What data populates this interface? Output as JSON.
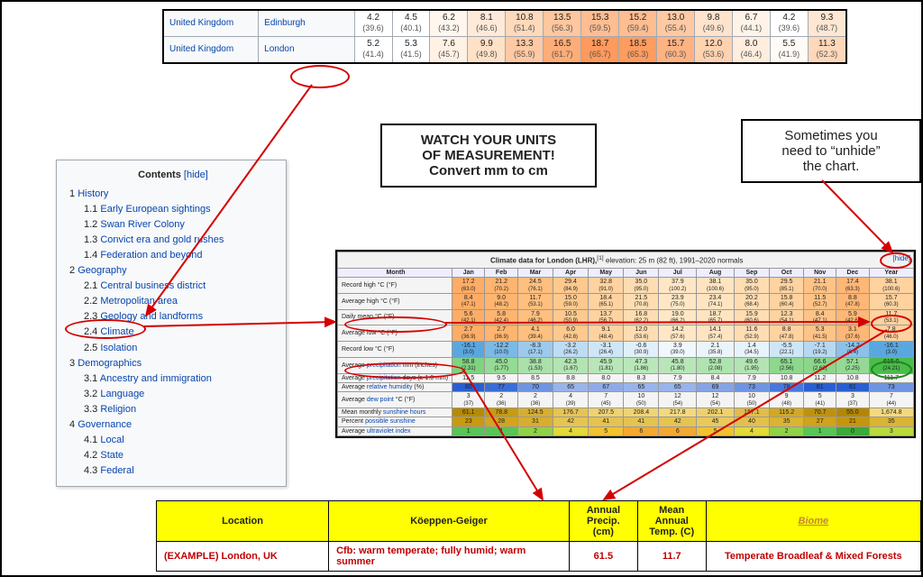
{
  "top_table": {
    "rows": [
      {
        "country": "United Kingdom",
        "city": "Edinburgh",
        "vals": [
          "4.2",
          "4.5",
          "6.2",
          "8.1",
          "10.8",
          "13.5",
          "15.3",
          "15.2",
          "13.0",
          "9.8",
          "6.7",
          "4.2",
          "9.3"
        ],
        "subs": [
          "(39.6)",
          "(40.1)",
          "(43.2)",
          "(46.6)",
          "(51.4)",
          "(56.3)",
          "(59.5)",
          "(59.4)",
          "(55.4)",
          "(49.6)",
          "(44.1)",
          "(39.6)",
          "(48.7)"
        ],
        "colors": [
          "#ffffff",
          "#ffffff",
          "#fff6ee",
          "#ffead9",
          "#ffd9bb",
          "#ffc79f",
          "#ffbd91",
          "#ffbd91",
          "#ffc9a3",
          "#ffe3cc",
          "#fff3e8",
          "#ffffff",
          "#ffe7d3"
        ]
      },
      {
        "country": "United Kingdom",
        "city": "London",
        "vals": [
          "5.2",
          "5.3",
          "7.6",
          "9.9",
          "13.3",
          "16.5",
          "18.7",
          "18.5",
          "15.7",
          "12.0",
          "8.0",
          "5.5",
          "11.3"
        ],
        "subs": [
          "(41.4)",
          "(41.5)",
          "(45.7)",
          "(49.8)",
          "(55.9)",
          "(61.7)",
          "(65.7)",
          "(65.3)",
          "(60.3)",
          "(53.6)",
          "(46.4)",
          "(41.9)",
          "(52.3)"
        ],
        "colors": [
          "#ffffff",
          "#ffffff",
          "#fff1e4",
          "#ffe1c7",
          "#ffc9a3",
          "#ffad78",
          "#ff9a5c",
          "#ff9c5f",
          "#ffb383",
          "#ffd2b0",
          "#ffedde",
          "#fffaf5",
          "#ffd8ba"
        ]
      }
    ]
  },
  "warn": {
    "l1": "WATCH YOUR UNITS",
    "l2": "OF MEASUREMENT!",
    "l3": "Convert mm to cm"
  },
  "hint": {
    "l1": "Sometimes you",
    "l2": "need to “unhide”",
    "l3": "the chart."
  },
  "contents": {
    "title": "Contents",
    "toggle": "[hide]",
    "items": [
      {
        "n": "1",
        "t": "History",
        "lvl": 1
      },
      {
        "n": "1.1",
        "t": "Early European sightings",
        "lvl": 2
      },
      {
        "n": "1.2",
        "t": "Swan River Colony",
        "lvl": 2
      },
      {
        "n": "1.3",
        "t": "Convict era and gold rushes",
        "lvl": 2
      },
      {
        "n": "1.4",
        "t": "Federation and beyond",
        "lvl": 2
      },
      {
        "n": "2",
        "t": "Geography",
        "lvl": 1
      },
      {
        "n": "2.1",
        "t": "Central business district",
        "lvl": 2
      },
      {
        "n": "2.2",
        "t": "Metropolitan area",
        "lvl": 2
      },
      {
        "n": "2.3",
        "t": "Geology and landforms",
        "lvl": 2
      },
      {
        "n": "2.4",
        "t": "Climate",
        "lvl": 2
      },
      {
        "n": "2.5",
        "t": "Isolation",
        "lvl": 2
      },
      {
        "n": "3",
        "t": "Demographics",
        "lvl": 1
      },
      {
        "n": "3.1",
        "t": "Ancestry and immigration",
        "lvl": 2
      },
      {
        "n": "3.2",
        "t": "Language",
        "lvl": 2
      },
      {
        "n": "3.3",
        "t": "Religion",
        "lvl": 2
      },
      {
        "n": "4",
        "t": "Governance",
        "lvl": 1
      },
      {
        "n": "4.1",
        "t": "Local",
        "lvl": 2
      },
      {
        "n": "4.2",
        "t": "State",
        "lvl": 2
      },
      {
        "n": "4.3",
        "t": "Federal",
        "lvl": 2
      }
    ]
  },
  "climate": {
    "caption_pre": "Climate data for London (LHR),",
    "caption_post": " elevation: 25 m (82 ft), 1991–2020 normals",
    "hide": "[hide]",
    "months": [
      "Month",
      "Jan",
      "Feb",
      "Mar",
      "Apr",
      "May",
      "Jun",
      "Jul",
      "Aug",
      "Sep",
      "Oct",
      "Nov",
      "Dec",
      "Year"
    ],
    "rows": [
      {
        "label": "Record high °C (°F)",
        "a": [
          "17.2",
          "21.2",
          "24.5",
          "29.4",
          "32.8",
          "35.0",
          "37.9",
          "38.1",
          "35.0",
          "29.5",
          "21.1",
          "17.4",
          "38.1"
        ],
        "b": [
          "(63.0)",
          "(70.2)",
          "(76.1)",
          "(84.9)",
          "(91.0)",
          "(95.0)",
          "(100.2)",
          "(100.6)",
          "(95.0)",
          "(85.1)",
          "(70.0)",
          "(63.3)",
          "(100.6)"
        ],
        "scheme": "warm"
      },
      {
        "label": "Average high °C (°F)",
        "a": [
          "8.4",
          "9.0",
          "11.7",
          "15.0",
          "18.4",
          "21.5",
          "23.9",
          "23.4",
          "20.2",
          "15.8",
          "11.5",
          "8.8",
          "15.7"
        ],
        "b": [
          "(47.1)",
          "(48.2)",
          "(53.1)",
          "(59.0)",
          "(65.1)",
          "(70.8)",
          "(75.0)",
          "(74.1)",
          "(68.4)",
          "(60.4)",
          "(52.7)",
          "(47.8)",
          "(60.3)"
        ],
        "scheme": "warm"
      },
      {
        "label": "Daily mean °C (°F)",
        "a": [
          "5.6",
          "5.8",
          "7.9",
          "10.5",
          "13.7",
          "16.8",
          "19.0",
          "18.7",
          "15.9",
          "12.3",
          "8.4",
          "5.9",
          "11.7"
        ],
        "b": [
          "(42.1)",
          "(42.4)",
          "(46.2)",
          "(50.9)",
          "(56.7)",
          "(62.2)",
          "(66.2)",
          "(65.7)",
          "(60.6)",
          "(54.1)",
          "(47.1)",
          "(42.6)",
          "(53.1)"
        ],
        "scheme": "warm"
      },
      {
        "label": "Average low °C (°F)",
        "a": [
          "2.7",
          "2.7",
          "4.1",
          "6.0",
          "9.1",
          "12.0",
          "14.2",
          "14.1",
          "11.6",
          "8.8",
          "5.3",
          "3.1",
          "7.8"
        ],
        "b": [
          "(36.9)",
          "(36.9)",
          "(39.4)",
          "(42.8)",
          "(48.4)",
          "(53.6)",
          "(57.6)",
          "(57.4)",
          "(52.9)",
          "(47.8)",
          "(41.5)",
          "(37.6)",
          "(46.0)"
        ],
        "scheme": "warm"
      },
      {
        "label": "Record low °C (°F)",
        "a": [
          "-16.1",
          "-12.2",
          "-8.3",
          "-3.2",
          "-3.1",
          "-0.6",
          "3.9",
          "2.1",
          "1.4",
          "-5.5",
          "-7.1",
          "-14.2",
          "-16.1"
        ],
        "b": [
          "(3.0)",
          "(10.0)",
          "(17.1)",
          "(26.2)",
          "(26.4)",
          "(30.9)",
          "(39.0)",
          "(35.8)",
          "(34.5)",
          "(22.1)",
          "(19.2)",
          "(6.4)",
          "(3.0)"
        ],
        "scheme": "cold"
      },
      {
        "label": "Average precipitation mm (inches)",
        "a": [
          "58.8",
          "45.0",
          "38.8",
          "42.3",
          "45.9",
          "47.3",
          "45.8",
          "52.8",
          "49.6",
          "65.1",
          "66.6",
          "57.1",
          "615.0"
        ],
        "b": [
          "(2.31)",
          "(1.77)",
          "(1.53)",
          "(1.67)",
          "(1.81)",
          "(1.86)",
          "(1.80)",
          "(2.08)",
          "(1.95)",
          "(2.56)",
          "(2.62)",
          "(2.25)",
          "(24.21)"
        ],
        "scheme": "green"
      },
      {
        "label": "Average precipitation days (≥ 1.0 mm)",
        "a": [
          "11.5",
          "9.5",
          "8.5",
          "8.8",
          "8.0",
          "8.3",
          "7.9",
          "8.4",
          "7.9",
          "10.8",
          "11.2",
          "10.8",
          "111.7"
        ],
        "b": null,
        "scheme": "plain"
      },
      {
        "label": "Average relative humidity (%)",
        "a": [
          "80",
          "77",
          "70",
          "65",
          "67",
          "65",
          "65",
          "69",
          "73",
          "78",
          "81",
          "81",
          "73"
        ],
        "b": null,
        "scheme": "blue"
      },
      {
        "label": "Average dew point °C (°F)",
        "a": [
          "3",
          "2",
          "2",
          "4",
          "7",
          "10",
          "12",
          "12",
          "10",
          "9",
          "5",
          "3",
          "7"
        ],
        "b": [
          "(37)",
          "(36)",
          "(36)",
          "(39)",
          "(45)",
          "(50)",
          "(54)",
          "(54)",
          "(50)",
          "(48)",
          "(41)",
          "(37)",
          "(44)"
        ],
        "scheme": "plain"
      },
      {
        "label": "Mean monthly sunshine hours",
        "a": [
          "61.1",
          "78.8",
          "124.5",
          "176.7",
          "207.5",
          "208.4",
          "217.8",
          "202.1",
          "157.1",
          "115.2",
          "70.7",
          "55.0",
          "1,674.8"
        ],
        "b": null,
        "scheme": "sun"
      },
      {
        "label": "Percent possible sunshine",
        "a": [
          "23",
          "28",
          "31",
          "42",
          "41",
          "41",
          "42",
          "45",
          "40",
          "35",
          "27",
          "21",
          "35"
        ],
        "b": null,
        "scheme": "sun2"
      },
      {
        "label": "Average ultraviolet index",
        "a": [
          "1",
          "1",
          "2",
          "4",
          "5",
          "6",
          "6",
          "5",
          "4",
          "2",
          "1",
          "0",
          "3"
        ],
        "b": null,
        "scheme": "uv"
      }
    ],
    "schemes": {
      "warm": [
        "#ffad66",
        "#ffb570",
        "#ffbf7e",
        "#ffc98e",
        "#ffd3a0",
        "#ffddb3",
        "#ffe7c6",
        "#ffe4c1",
        "#ffddb3",
        "#ffd3a0",
        "#ffc387",
        "#ffb776",
        "#ffd29f"
      ],
      "cold": [
        "#5aa7e0",
        "#7bb9e7",
        "#9ccaed",
        "#bedcf4",
        "#cfe6f7",
        "#e0effa",
        "#f0f7fd",
        "#ecf4fb",
        "#e8f2fb",
        "#cfe6f7",
        "#b8d8f2",
        "#8cc1ea",
        "#5aa7e0"
      ],
      "green": [
        "#7fd27f",
        "#95da95",
        "#a9e1a9",
        "#b3e4b3",
        "#b8e6b8",
        "#bae7ba",
        "#b8e6b8",
        "#afe3af",
        "#b3e4b3",
        "#8ed78e",
        "#8bd68b",
        "#94da94",
        "#4bbb4b"
      ],
      "plain": [
        "#f4f4f4",
        "#f4f4f4",
        "#f4f4f4",
        "#f4f4f4",
        "#f4f4f4",
        "#f4f4f4",
        "#f4f4f4",
        "#f4f4f4",
        "#f4f4f4",
        "#f4f4f4",
        "#f4f4f4",
        "#f4f4f4",
        "#f4f4f4"
      ],
      "blue": [
        "#2a5fd1",
        "#3a6dd6",
        "#6f95e1",
        "#99b4ea",
        "#8fabe7",
        "#99b4ea",
        "#99b4ea",
        "#85a4e4",
        "#6f95e1",
        "#4a78d9",
        "#2a5fd1",
        "#2a5fd1",
        "#6f95e1"
      ],
      "sun": [
        "#b88a00",
        "#c79a0f",
        "#d7ae2e",
        "#e6c452",
        "#f0d26e",
        "#f1d472",
        "#f4d97c",
        "#efd16b",
        "#e2bd47",
        "#d2a825",
        "#c0910a",
        "#b58600",
        "#f4d97c"
      ],
      "sun2": [
        "#c79a0f",
        "#d1a51f",
        "#d7ae2e",
        "#e6c452",
        "#e5c350",
        "#e5c350",
        "#e6c452",
        "#e9c95b",
        "#e3c04c",
        "#dab434",
        "#cfa31c",
        "#c4960b",
        "#dab434"
      ],
      "uv": [
        "#57c557",
        "#57c557",
        "#8fd24a",
        "#e2d93a",
        "#f2c233",
        "#f2a833",
        "#f2a833",
        "#f2c233",
        "#e2d93a",
        "#8fd24a",
        "#57c557",
        "#3aaa3a",
        "#b9d940"
      ]
    }
  },
  "btm": {
    "headers": {
      "loc": "Location",
      "kg": "Köeppen-Geiger",
      "precip": "Annual Precip. (cm)",
      "temp": "Mean Annual Temp. (C)",
      "biome": "Biome"
    },
    "row": {
      "loc": "(EXAMPLE) London, UK",
      "kg": "Cfb: warm temperate; fully humid; warm summer",
      "precip": "61.5",
      "temp": "11.7",
      "biome": "Temperate Broadleaf & Mixed Forests"
    }
  }
}
